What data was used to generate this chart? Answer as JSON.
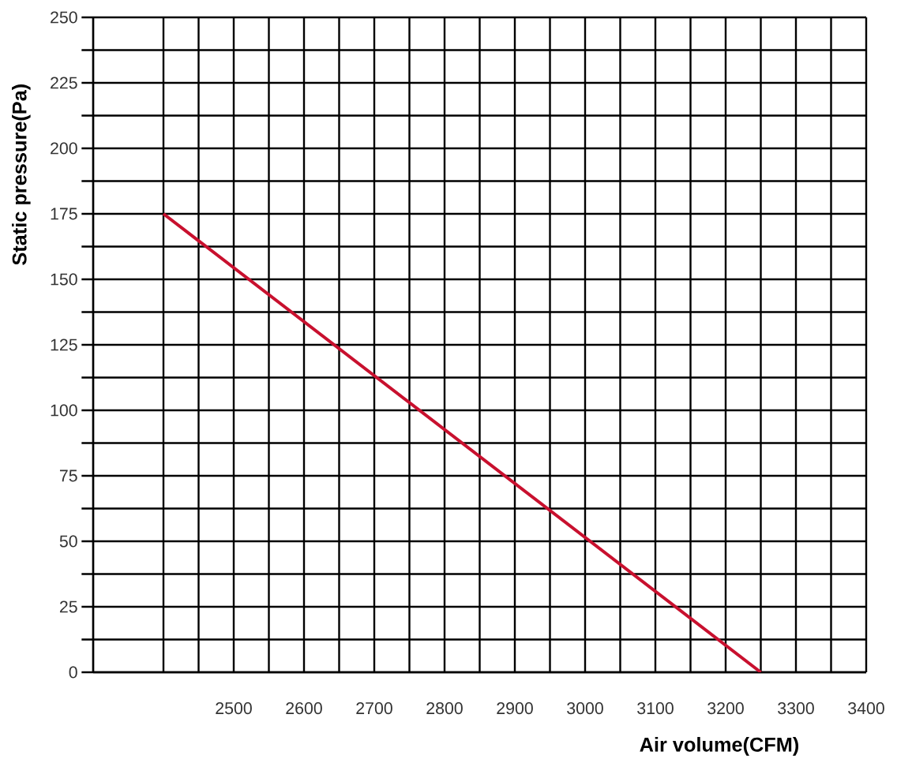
{
  "chart_data": {
    "type": "line",
    "xlabel": "Air volume(CFM)",
    "ylabel": "Static pressure(Pa)",
    "x": [
      2400,
      3250
    ],
    "series": [
      {
        "color": "#c8102e",
        "values": [
          175,
          0
        ]
      }
    ],
    "xlim": [
      2300,
      3400
    ],
    "ylim": [
      0,
      250
    ],
    "xticks": [
      {
        "value": 2400,
        "label": null
      },
      {
        "value": 2450,
        "label": null
      },
      2500,
      {
        "value": 2550,
        "label": null
      },
      2600,
      {
        "value": 2650,
        "label": null
      },
      2700,
      {
        "value": 2750,
        "label": null
      },
      2800,
      {
        "value": 2850,
        "label": null
      },
      2900,
      {
        "value": 2950,
        "label": null
      },
      3000,
      {
        "value": 3050,
        "label": null
      },
      3100,
      {
        "value": 3150,
        "label": null
      },
      3200,
      {
        "value": 3250,
        "label": null
      },
      3300,
      {
        "value": 3350,
        "label": null
      },
      3400
    ],
    "yticks": [
      0,
      {
        "value": 12.5,
        "label": null
      },
      25,
      {
        "value": 37.5,
        "label": null
      },
      50,
      {
        "value": 62.5,
        "label": null
      },
      75,
      {
        "value": 87.5,
        "label": null
      },
      100,
      {
        "value": 112.5,
        "label": null
      },
      125,
      {
        "value": 137.5,
        "label": null
      },
      150,
      {
        "value": 162.5,
        "label": null
      },
      175,
      {
        "value": 187.5,
        "label": null
      },
      200,
      {
        "value": 212.5,
        "label": null
      },
      225,
      {
        "value": 237.5,
        "label": null
      },
      250
    ],
    "grid": true
  }
}
